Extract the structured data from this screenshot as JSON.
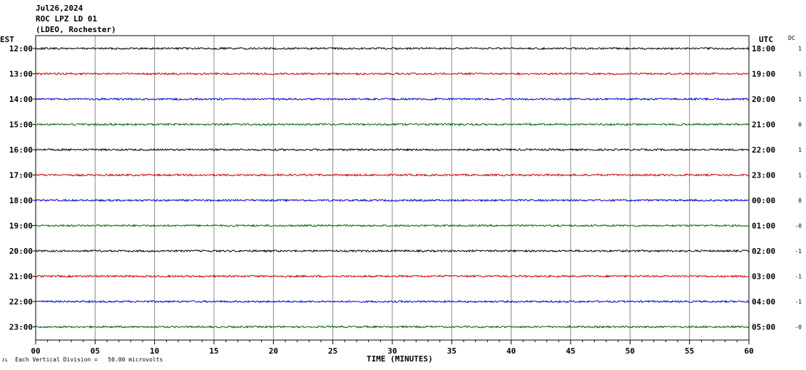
{
  "header": {
    "date": "Jul26,2024",
    "station": "ROC LPZ LD 01",
    "network": "(LDEO, Rochester)"
  },
  "left_zone": "EST",
  "right_zone": "UTC",
  "dc_header": "DC",
  "footer": {
    "mark": "ᴊʟ",
    "scale_note": "Each Vertical Division =   50.00 microvolts"
  },
  "chart_data": {
    "type": "line",
    "title": "",
    "xlabel": "TIME (MINUTES)",
    "xlim": [
      0,
      60
    ],
    "x_ticks": [
      "00",
      "05",
      "10",
      "15",
      "20",
      "25",
      "30",
      "35",
      "40",
      "45",
      "50",
      "55",
      "60"
    ],
    "grid": true,
    "trace_colors": [
      "#000000",
      "#cc0000",
      "#0000cc",
      "#006600"
    ],
    "traces": [
      {
        "est": "12:00",
        "utc": "18:00",
        "dc": "1"
      },
      {
        "est": "13:00",
        "utc": "19:00",
        "dc": "1"
      },
      {
        "est": "14:00",
        "utc": "20:00",
        "dc": "1"
      },
      {
        "est": "15:00",
        "utc": "21:00",
        "dc": "0"
      },
      {
        "est": "16:00",
        "utc": "22:00",
        "dc": "1"
      },
      {
        "est": "17:00",
        "utc": "23:00",
        "dc": "1"
      },
      {
        "est": "18:00",
        "utc": "00:00",
        "dc": "0"
      },
      {
        "est": "19:00",
        "utc": "01:00",
        "dc": "-0"
      },
      {
        "est": "20:00",
        "utc": "02:00",
        "dc": "-1"
      },
      {
        "est": "21:00",
        "utc": "03:00",
        "dc": "-1"
      },
      {
        "est": "22:00",
        "utc": "04:00",
        "dc": "-1"
      },
      {
        "est": "23:00",
        "utc": "05:00",
        "dc": "-0"
      }
    ]
  }
}
